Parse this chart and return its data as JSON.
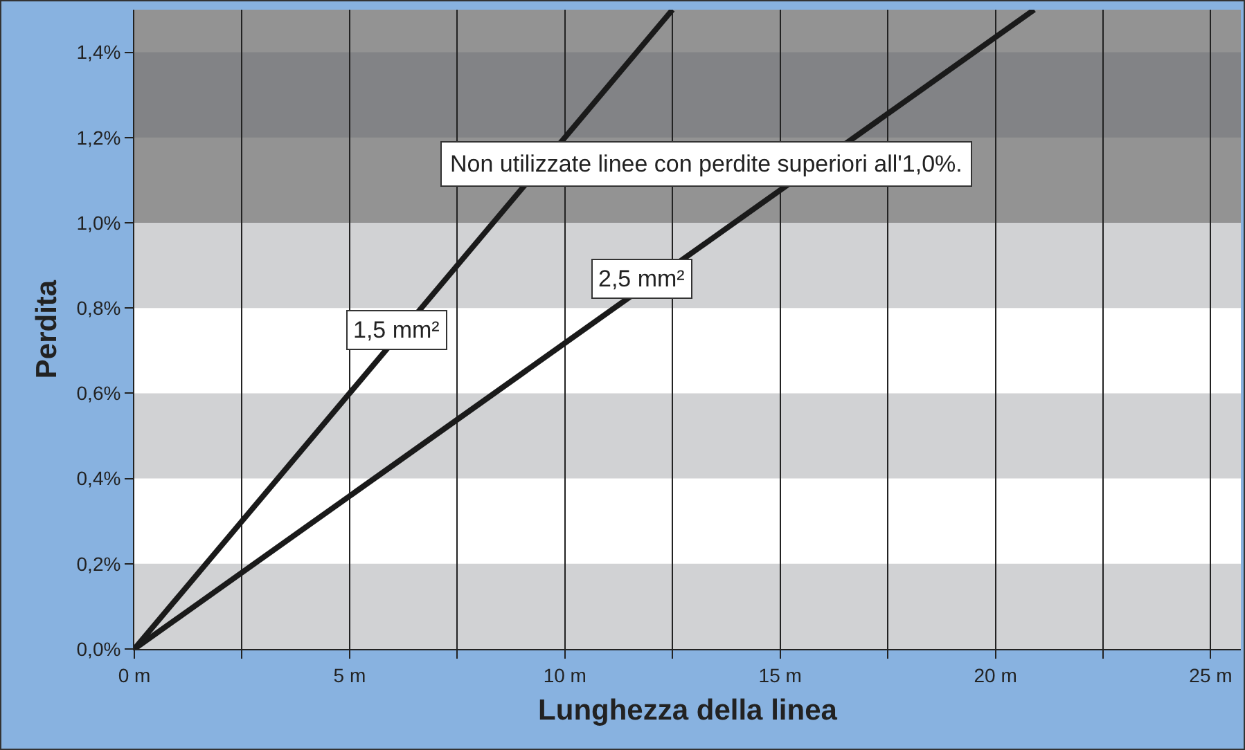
{
  "chart_data": {
    "type": "line",
    "xlabel": "Lunghezza della linea",
    "ylabel": "Perdita",
    "series": [
      {
        "name": "1,5 mm²",
        "color": "#1a1a1a",
        "x": [
          0,
          12.5
        ],
        "values": [
          0,
          1.5
        ]
      },
      {
        "name": "2,5 mm²",
        "color": "#1a1a1a",
        "x": [
          0,
          20.9
        ],
        "values": [
          0,
          1.5
        ]
      }
    ],
    "xlim": [
      0,
      25.7
    ],
    "ylim": [
      0,
      1.5
    ],
    "xticks": [
      {
        "value": 0,
        "label": "0 m"
      },
      {
        "value": 2.5,
        "label": null
      },
      {
        "value": 5,
        "label": "5 m"
      },
      {
        "value": 7.5,
        "label": null
      },
      {
        "value": 10,
        "label": "10 m"
      },
      {
        "value": 12.5,
        "label": null
      },
      {
        "value": 15,
        "label": "15 m"
      },
      {
        "value": 17.5,
        "label": null
      },
      {
        "value": 20,
        "label": "20 m"
      },
      {
        "value": 22.5,
        "label": null
      },
      {
        "value": 25,
        "label": "25 m"
      }
    ],
    "yticks": [
      {
        "value": 0,
        "label": "0,0%"
      },
      {
        "value": 0.2,
        "label": "0,2%"
      },
      {
        "value": 0.4,
        "label": "0,4%"
      },
      {
        "value": 0.6,
        "label": "0,6%"
      },
      {
        "value": 0.8,
        "label": "0,8%"
      },
      {
        "value": 1.0,
        "label": "1,0%"
      },
      {
        "value": 1.2,
        "label": "1,2%"
      },
      {
        "value": 1.4,
        "label": "1,4%"
      }
    ],
    "bands": [
      {
        "axis": "y",
        "from": 0,
        "to": 0.2,
        "color": "#d1d2d4"
      },
      {
        "axis": "y",
        "from": 0.4,
        "to": 0.6,
        "color": "#d1d2d4"
      },
      {
        "axis": "y",
        "from": 0.8,
        "to": 1.0,
        "color": "#d1d2d4"
      },
      {
        "axis": "y",
        "from": 1.0,
        "to": 1.5,
        "color": "#939393"
      },
      {
        "axis": "y",
        "from": 1.2,
        "to": 1.4,
        "color": "#828386"
      }
    ],
    "annotations": [
      "Non utilizzate linee con perdite superiori all'1,0%."
    ],
    "grid": "x",
    "legend": false,
    "marker": "none",
    "line_style": "solid"
  }
}
